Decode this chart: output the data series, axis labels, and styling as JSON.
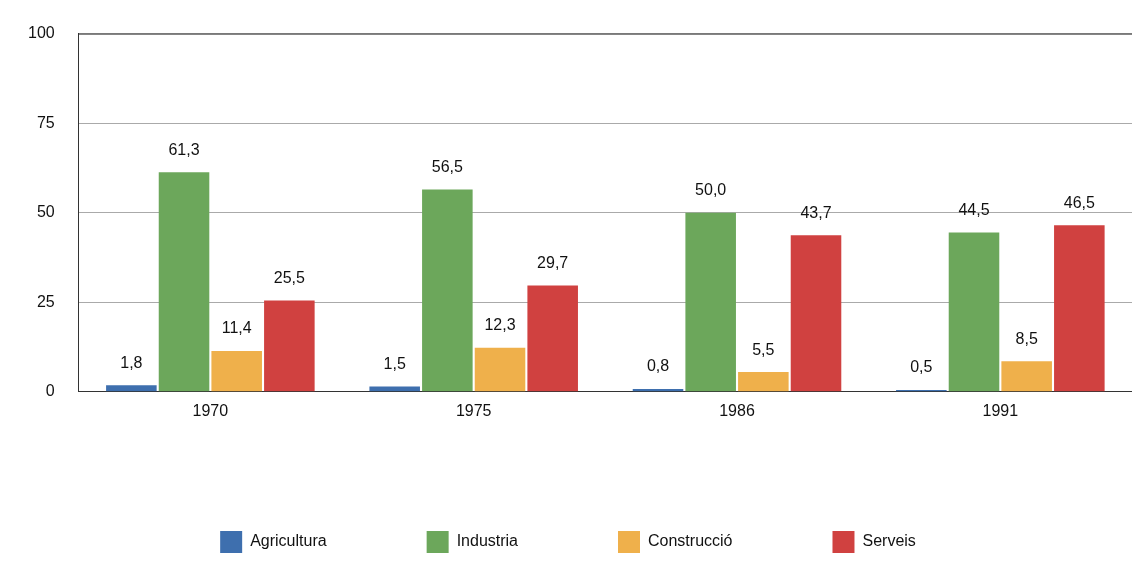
{
  "chart_data": {
    "type": "bar",
    "categories": [
      "1970",
      "1975",
      "1986",
      "1991"
    ],
    "series": [
      {
        "name": "Agricultura",
        "color": "#3e6fae",
        "values": [
          1.8,
          1.5,
          0.8,
          0.5
        ],
        "value_labels": [
          "1,8",
          "1,5",
          "0,8",
          "0,5"
        ]
      },
      {
        "name": "Industria",
        "color": "#6ca75b",
        "values": [
          61.3,
          56.5,
          50.0,
          44.5
        ],
        "value_labels": [
          "61,3",
          "56,5",
          "50,0",
          "44,5"
        ]
      },
      {
        "name": "Construcció",
        "color": "#efb04b",
        "values": [
          11.4,
          12.3,
          5.5,
          8.5
        ],
        "value_labels": [
          "11,4",
          "12,3",
          "5,5",
          "8,5"
        ]
      },
      {
        "name": "Serveis",
        "color": "#d04140",
        "values": [
          25.5,
          29.7,
          43.7,
          46.5
        ],
        "value_labels": [
          "25,5",
          "29,7",
          "43,7",
          "46,5"
        ]
      }
    ],
    "ylim": [
      0,
      100
    ],
    "yticks": [
      0,
      25,
      50,
      75,
      100
    ],
    "grid": "y",
    "legend": "bottom"
  }
}
